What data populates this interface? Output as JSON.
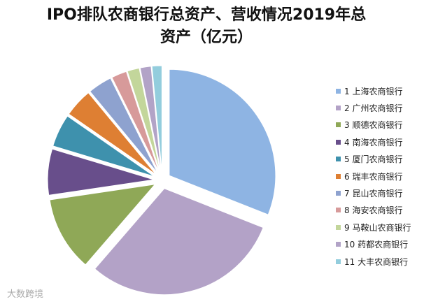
{
  "chart_data": {
    "type": "pie",
    "title": "IPO排队农商银行总资产、营收情况2019年总资产（亿元）",
    "legend_position": "right",
    "categories": [
      "1 上海农商银行",
      "2 广州农商银行",
      "3 顺德农商银行",
      "4 南海农商银行",
      "5 厦门农商银行",
      "6 瑞丰农商银行",
      "7 昆山农商银行",
      "8 海安农商银行",
      "9 马鞍山农商银行",
      "10 药都农商银行",
      "11 大丰农商银行"
    ],
    "values": [
      9300,
      9100,
      3400,
      2100,
      1500,
      1300,
      1100,
      700,
      550,
      500,
      450
    ],
    "colors": [
      "#8eb4e3",
      "#b3a2c7",
      "#8fa857",
      "#684e8b",
      "#3e91ad",
      "#de7f33",
      "#8ea2cf",
      "#d79a9a",
      "#c3d69b",
      "#b2a3c7",
      "#93cddd"
    ]
  },
  "watermark": "大数跨境"
}
